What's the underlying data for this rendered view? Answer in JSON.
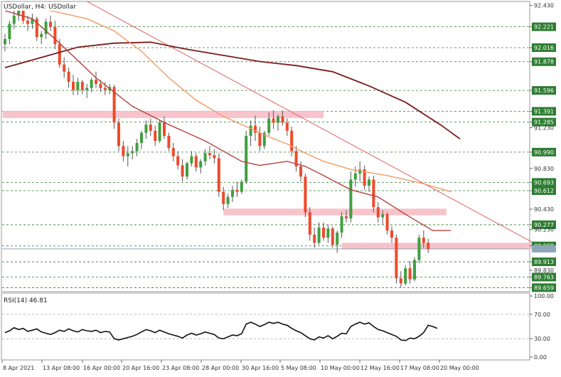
{
  "chart_data": [
    {
      "type": "candlestick",
      "title": "USDollar, H4: USDollar",
      "x_tick_labels": [
        "8 Apr 2021",
        "13 Apr 08:00",
        "16 Apr 00:00",
        "20 Apr 16:00",
        "23 Apr 08:00",
        "28 Apr 00:00",
        "30 Apr 16:00",
        "5 May 08:00",
        "10 May 00:00",
        "12 May 16:00",
        "17 May 08:00",
        "20 May 00:00"
      ],
      "y_tick_labels": [
        "92.430",
        "92.221",
        "92.016",
        "91.878",
        "91.596",
        "91.391",
        "91.285",
        "91.230",
        "90.990",
        "90.830",
        "90.693",
        "90.612",
        "90.430",
        "90.277",
        "90.230",
        "90.069",
        "89.913",
        "89.830",
        "89.763",
        "89.659"
      ],
      "ylim": [
        89.62,
        92.47
      ],
      "highlighted_levels": [
        92.221,
        92.016,
        91.878,
        91.596,
        91.391,
        91.285,
        90.99,
        90.693,
        90.612,
        90.277,
        90.069,
        89.913,
        89.763,
        89.659
      ],
      "current_price": 90.04,
      "colors": {
        "bull": "#3f9f3f",
        "bear": "#ef4a2a",
        "wick": "#555555",
        "level_label_bg": "#2e7d32",
        "ma_slow": "#7a1c1c",
        "ma_mid": "#b5433f",
        "ma_fast": "#f19b63",
        "trendline": "#e06060",
        "zone": "#f7b8c2"
      },
      "candles": [
        [
          92.05,
          92.15,
          91.98,
          92.1
        ],
        [
          92.1,
          92.28,
          92.05,
          92.25
        ],
        [
          92.25,
          92.4,
          92.2,
          92.33
        ],
        [
          92.33,
          92.45,
          92.28,
          92.38
        ],
        [
          92.38,
          92.42,
          92.25,
          92.28
        ],
        [
          92.28,
          92.33,
          92.18,
          92.25
        ],
        [
          92.25,
          92.35,
          92.2,
          92.3
        ],
        [
          92.3,
          92.32,
          92.08,
          92.12
        ],
        [
          92.12,
          92.18,
          92.05,
          92.15
        ],
        [
          92.15,
          92.3,
          92.1,
          92.27
        ],
        [
          92.27,
          92.33,
          92.18,
          92.22
        ],
        [
          92.22,
          92.28,
          92.0,
          92.05
        ],
        [
          92.05,
          92.1,
          91.82,
          91.85
        ],
        [
          91.85,
          91.92,
          91.72,
          91.78
        ],
        [
          91.78,
          91.82,
          91.62,
          91.68
        ],
        [
          91.68,
          91.75,
          91.55,
          91.6
        ],
        [
          91.6,
          91.72,
          91.55,
          91.68
        ],
        [
          91.68,
          91.7,
          91.56,
          91.6
        ],
        [
          91.6,
          91.66,
          91.52,
          91.62
        ],
        [
          91.62,
          91.72,
          91.58,
          91.7
        ],
        [
          91.7,
          91.78,
          91.62,
          91.66
        ],
        [
          91.66,
          91.7,
          91.58,
          91.62
        ],
        [
          91.62,
          91.68,
          91.55,
          91.6
        ],
        [
          91.6,
          91.66,
          91.56,
          91.63
        ],
        [
          91.63,
          91.65,
          91.22,
          91.28
        ],
        [
          91.28,
          91.32,
          91.0,
          91.05
        ],
        [
          91.05,
          91.1,
          90.9,
          90.95
        ],
        [
          90.95,
          91.05,
          90.85,
          90.98
        ],
        [
          90.98,
          91.05,
          90.92,
          91.0
        ],
        [
          91.0,
          91.12,
          90.95,
          91.08
        ],
        [
          91.08,
          91.2,
          91.02,
          91.18
        ],
        [
          91.18,
          91.3,
          91.12,
          91.26
        ],
        [
          91.26,
          91.32,
          91.15,
          91.2
        ],
        [
          91.2,
          91.25,
          91.05,
          91.1
        ],
        [
          91.1,
          91.3,
          91.08,
          91.28
        ],
        [
          91.28,
          91.34,
          91.12,
          91.15
        ],
        [
          91.15,
          91.18,
          91.0,
          91.03
        ],
        [
          91.03,
          91.08,
          90.9,
          90.95
        ],
        [
          90.95,
          91.0,
          90.82,
          90.86
        ],
        [
          90.86,
          90.92,
          90.7,
          90.75
        ],
        [
          90.75,
          90.9,
          90.72,
          90.88
        ],
        [
          90.88,
          91.0,
          90.85,
          90.95
        ],
        [
          90.95,
          90.98,
          90.8,
          90.84
        ],
        [
          90.84,
          90.92,
          90.78,
          90.9
        ],
        [
          90.9,
          91.02,
          90.86,
          90.98
        ],
        [
          90.98,
          91.05,
          90.92,
          90.96
        ],
        [
          90.96,
          91.02,
          90.88,
          90.93
        ],
        [
          90.93,
          90.98,
          90.55,
          90.6
        ],
        [
          90.6,
          90.65,
          90.42,
          90.48
        ],
        [
          90.48,
          90.58,
          90.44,
          90.55
        ],
        [
          90.55,
          90.66,
          90.5,
          90.62
        ],
        [
          90.62,
          90.7,
          90.55,
          90.6
        ],
        [
          90.6,
          90.72,
          90.58,
          90.7
        ],
        [
          90.7,
          91.2,
          90.68,
          91.15
        ],
        [
          91.15,
          91.3,
          91.05,
          91.25
        ],
        [
          91.25,
          91.35,
          91.1,
          91.18
        ],
        [
          91.18,
          91.24,
          91.0,
          91.05
        ],
        [
          91.05,
          91.2,
          91.02,
          91.18
        ],
        [
          91.18,
          91.38,
          91.15,
          91.32
        ],
        [
          91.32,
          91.4,
          91.22,
          91.28
        ],
        [
          91.28,
          91.36,
          91.2,
          91.34
        ],
        [
          91.34,
          91.4,
          91.25,
          91.28
        ],
        [
          91.28,
          91.32,
          91.15,
          91.2
        ],
        [
          91.2,
          91.24,
          90.95,
          91.0
        ],
        [
          91.0,
          91.05,
          90.8,
          90.85
        ],
        [
          90.85,
          90.9,
          90.7,
          90.75
        ],
        [
          90.75,
          90.78,
          90.35,
          90.4
        ],
        [
          90.4,
          90.45,
          90.12,
          90.18
        ],
        [
          90.18,
          90.25,
          90.05,
          90.1
        ],
        [
          90.1,
          90.3,
          90.08,
          90.25
        ],
        [
          90.25,
          90.3,
          90.12,
          90.15
        ],
        [
          90.15,
          90.28,
          90.1,
          90.24
        ],
        [
          90.24,
          90.26,
          90.05,
          90.08
        ],
        [
          90.08,
          90.22,
          90.0,
          90.2
        ],
        [
          90.2,
          90.4,
          90.15,
          90.36
        ],
        [
          90.36,
          90.42,
          90.3,
          90.34
        ],
        [
          90.34,
          90.8,
          90.3,
          90.72
        ],
        [
          90.72,
          90.85,
          90.65,
          90.78
        ],
        [
          90.78,
          90.9,
          90.7,
          90.82
        ],
        [
          90.82,
          90.86,
          90.62,
          90.66
        ],
        [
          90.66,
          90.75,
          90.6,
          90.72
        ],
        [
          90.72,
          90.76,
          90.4,
          90.45
        ],
        [
          90.45,
          90.5,
          90.3,
          90.35
        ],
        [
          90.35,
          90.42,
          90.28,
          90.38
        ],
        [
          90.38,
          90.4,
          90.18,
          90.22
        ],
        [
          90.22,
          90.26,
          90.1,
          90.15
        ],
        [
          90.15,
          90.18,
          89.7,
          89.75
        ],
        [
          89.75,
          89.82,
          89.66,
          89.7
        ],
        [
          89.7,
          89.88,
          89.68,
          89.85
        ],
        [
          89.85,
          89.92,
          89.7,
          89.74
        ],
        [
          89.74,
          89.96,
          89.72,
          89.93
        ],
        [
          89.93,
          90.18,
          89.9,
          90.15
        ],
        [
          90.15,
          90.22,
          90.05,
          90.1
        ],
        [
          90.1,
          90.14,
          90.0,
          90.04
        ]
      ],
      "moving_averages": [
        {
          "role": "slow",
          "points": [
            [
              0,
              91.82
            ],
            [
              8,
              91.92
            ],
            [
              16,
              92.02
            ],
            [
              24,
              92.06
            ],
            [
              32,
              92.07
            ],
            [
              40,
              92.0
            ],
            [
              48,
              91.94
            ],
            [
              56,
              91.88
            ],
            [
              64,
              91.84
            ],
            [
              72,
              91.78
            ],
            [
              80,
              91.64
            ],
            [
              88,
              91.48
            ],
            [
              96,
              91.25
            ],
            [
              100,
              91.12
            ]
          ]
        },
        {
          "role": "mid",
          "points": [
            [
              0,
              92.38
            ],
            [
              6,
              92.3
            ],
            [
              12,
              92.06
            ],
            [
              20,
              91.72
            ],
            [
              28,
              91.44
            ],
            [
              36,
              91.26
            ],
            [
              44,
              91.1
            ],
            [
              52,
              90.9
            ],
            [
              56,
              90.86
            ],
            [
              62,
              90.9
            ],
            [
              66,
              90.85
            ],
            [
              70,
              90.76
            ],
            [
              76,
              90.62
            ],
            [
              82,
              90.55
            ],
            [
              88,
              90.38
            ],
            [
              94,
              90.22
            ],
            [
              98,
              90.22
            ]
          ]
        },
        {
          "role": "fast",
          "points": [
            [
              0,
              92.47
            ],
            [
              10,
              92.38
            ],
            [
              18,
              92.3
            ],
            [
              24,
              92.18
            ],
            [
              30,
              91.98
            ],
            [
              36,
              91.72
            ],
            [
              42,
              91.5
            ],
            [
              48,
              91.34
            ],
            [
              54,
              91.22
            ],
            [
              58,
              91.14
            ],
            [
              62,
              91.07
            ],
            [
              66,
              90.98
            ],
            [
              70,
              90.9
            ],
            [
              76,
              90.82
            ],
            [
              84,
              90.76
            ],
            [
              92,
              90.68
            ],
            [
              98,
              90.6
            ]
          ]
        }
      ],
      "trendline": [
        [
          18,
          92.47
        ],
        [
          119,
          90.03
        ]
      ],
      "zones": [
        {
          "x0": -0.5,
          "x1": 70,
          "y_low": 91.325,
          "y_high": 91.395
        },
        {
          "x0": 48,
          "x1": 97,
          "y_low": 90.37,
          "y_high": 90.435
        },
        {
          "x0": 74,
          "x1": 120,
          "y_low": 90.035,
          "y_high": 90.1
        }
      ]
    },
    {
      "type": "line",
      "title": "RSI(14) 46.81",
      "y_tick_labels": [
        "100.00",
        "70.00",
        "30.00",
        "0.00"
      ],
      "ylim": [
        0,
        100
      ],
      "levels": [
        70,
        30
      ],
      "values": [
        40,
        43,
        48,
        45,
        47,
        42,
        44,
        46,
        41,
        39,
        37,
        40,
        44,
        42,
        46,
        43,
        41,
        45,
        43,
        42,
        44,
        40,
        42,
        41,
        30,
        28,
        30,
        32,
        34,
        37,
        41,
        45,
        43,
        40,
        44,
        41,
        38,
        36,
        34,
        31,
        36,
        39,
        36,
        38,
        41,
        39,
        37,
        31,
        30,
        33,
        36,
        35,
        38,
        54,
        57,
        54,
        50,
        53,
        57,
        55,
        57,
        54,
        52,
        47,
        43,
        40,
        35,
        30,
        28,
        33,
        31,
        35,
        30,
        34,
        39,
        38,
        50,
        54,
        57,
        54,
        56,
        50,
        45,
        43,
        40,
        37,
        34,
        28,
        27,
        31,
        30,
        34,
        40,
        52,
        50,
        47
      ]
    }
  ]
}
